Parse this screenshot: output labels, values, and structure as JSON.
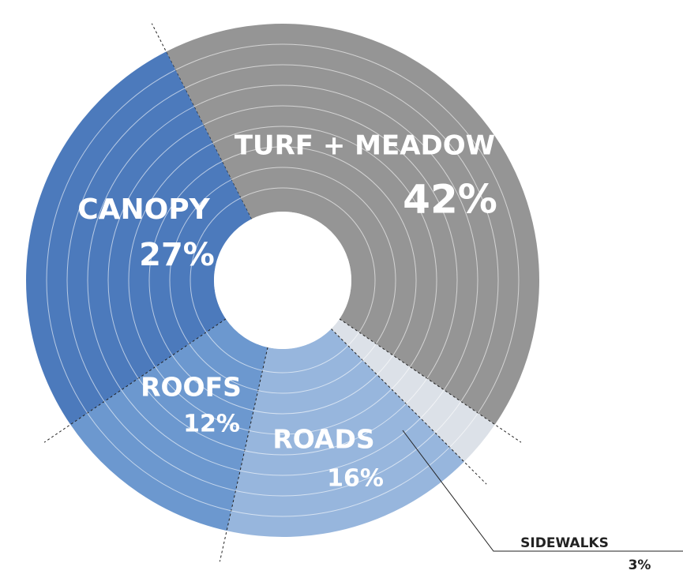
{
  "chart_data": {
    "type": "donut",
    "categories": [
      "TURF + MEADOW",
      "SIDEWALKS",
      "ROADS",
      "ROOFS",
      "CANOPY"
    ],
    "values": [
      42,
      3,
      16,
      12,
      27
    ],
    "value_labels": [
      "42%",
      "3%",
      "16%",
      "12%",
      "27%"
    ],
    "colors": [
      "#8c8c8c",
      "#d9dee6",
      "#8eb0da",
      "#5f8fcb",
      "#3d6fb6"
    ]
  }
}
